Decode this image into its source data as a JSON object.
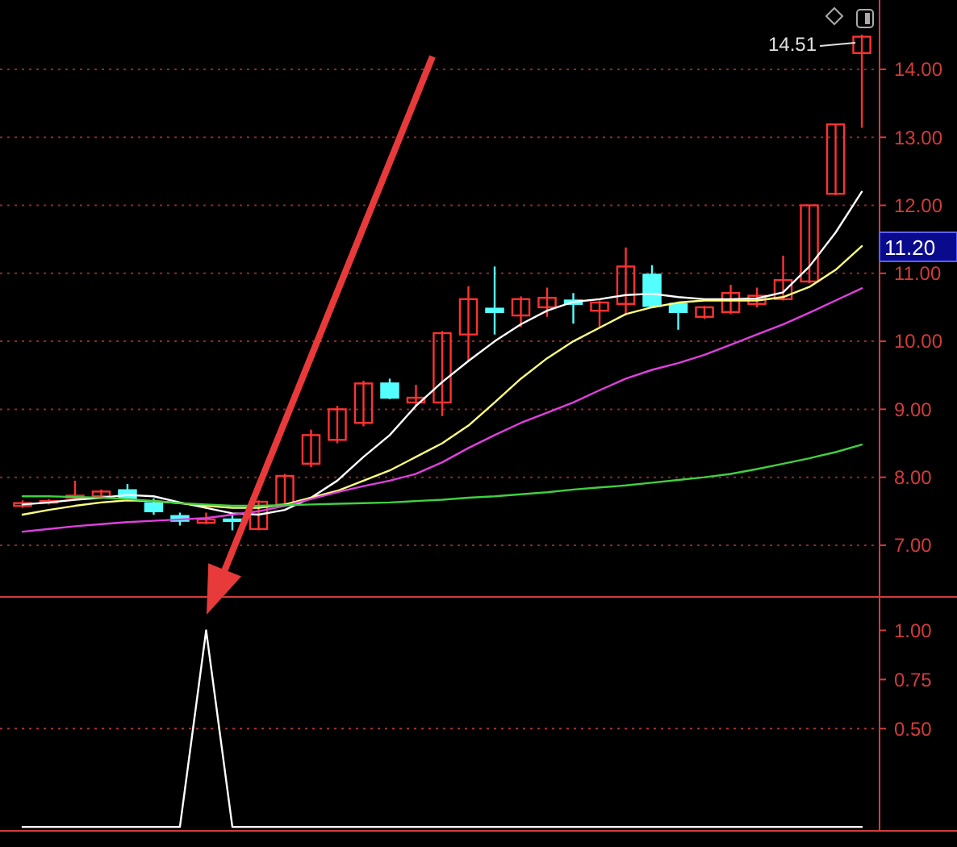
{
  "chart_data": [
    {
      "type": "candlestick",
      "categories": [
        null,
        null,
        null,
        null,
        null,
        null,
        null,
        null,
        null,
        null,
        null,
        null,
        null,
        null,
        null,
        null,
        null,
        null,
        null,
        null,
        null,
        null,
        null,
        null,
        null,
        null,
        null,
        null,
        null,
        null,
        null,
        null,
        null
      ],
      "ohlc": [
        [
          7.58,
          7.66,
          7.55,
          7.62
        ],
        [
          7.64,
          7.68,
          7.6,
          7.65
        ],
        [
          7.7,
          7.95,
          7.68,
          7.73
        ],
        [
          7.72,
          7.82,
          7.7,
          7.79
        ],
        [
          7.81,
          7.9,
          7.67,
          7.69
        ],
        [
          7.62,
          7.69,
          7.45,
          7.5
        ],
        [
          7.43,
          7.48,
          7.29,
          7.36
        ],
        [
          7.33,
          7.48,
          7.31,
          7.38
        ],
        [
          7.38,
          7.45,
          7.22,
          7.37
        ],
        [
          7.24,
          7.66,
          7.22,
          7.64
        ],
        [
          7.6,
          8.05,
          7.58,
          8.02
        ],
        [
          8.2,
          8.7,
          8.15,
          8.62
        ],
        [
          8.55,
          9.05,
          8.5,
          9.0
        ],
        [
          8.8,
          9.42,
          8.75,
          9.38
        ],
        [
          9.38,
          9.45,
          9.15,
          9.17
        ],
        [
          9.1,
          9.36,
          9.05,
          9.17
        ],
        [
          9.1,
          10.15,
          8.9,
          10.12
        ],
        [
          10.1,
          10.81,
          9.71,
          10.62
        ],
        [
          10.48,
          11.1,
          10.1,
          10.43
        ],
        [
          10.38,
          10.66,
          10.21,
          10.62
        ],
        [
          10.5,
          10.79,
          10.36,
          10.64
        ],
        [
          10.6,
          10.71,
          10.26,
          10.55
        ],
        [
          10.45,
          10.6,
          10.19,
          10.57
        ],
        [
          10.55,
          11.38,
          10.38,
          11.1
        ],
        [
          10.98,
          11.12,
          10.5,
          10.52
        ],
        [
          10.55,
          10.58,
          10.17,
          10.43
        ],
        [
          10.36,
          10.52,
          10.33,
          10.5
        ],
        [
          10.43,
          10.83,
          10.4,
          10.71
        ],
        [
          10.55,
          10.79,
          10.5,
          10.67
        ],
        [
          10.62,
          11.26,
          10.6,
          10.9
        ],
        [
          10.88,
          12.0,
          10.85,
          12.0
        ],
        [
          12.17,
          13.19,
          12.15,
          13.19
        ],
        [
          14.24,
          14.51,
          13.14,
          14.48
        ]
      ],
      "colors": [
        "#ff3232",
        "#ff3232",
        "#ff3232",
        "#ff3232",
        "#54ffff",
        "#54ffff",
        "#54ffff",
        "#ff3232",
        "#54ffff",
        "#ff3232",
        "#ff3232",
        "#ff3232",
        "#ff3232",
        "#ff3232",
        "#54ffff",
        "#ff3232",
        "#ff3232",
        "#ff3232",
        "#54ffff",
        "#ff3232",
        "#ff3232",
        "#54ffff",
        "#ff3232",
        "#ff3232",
        "#54ffff",
        "#54ffff",
        "#ff3232",
        "#ff3232",
        "#ff3232",
        "#ff3232",
        "#ff3232",
        "#ff3232",
        "#ff3232"
      ],
      "series": [
        {
          "type": "line",
          "color": "#ffffff",
          "values": [
            7.6,
            7.63,
            7.67,
            7.7,
            7.74,
            7.72,
            7.63,
            7.55,
            7.47,
            7.45,
            7.52,
            7.7,
            7.95,
            8.3,
            8.62,
            9.05,
            9.4,
            9.71,
            10.0,
            10.25,
            10.45,
            10.58,
            10.62,
            10.68,
            10.7,
            10.65,
            10.62,
            10.62,
            10.63,
            10.72,
            11.1,
            11.6,
            12.2
          ]
        },
        {
          "type": "line",
          "color": "#ffff80",
          "values": [
            7.45,
            7.52,
            7.58,
            7.63,
            7.66,
            7.65,
            7.62,
            7.58,
            7.55,
            7.55,
            7.6,
            7.7,
            7.8,
            7.95,
            8.1,
            8.3,
            8.5,
            8.76,
            9.1,
            9.45,
            9.75,
            10.0,
            10.2,
            10.4,
            10.5,
            10.57,
            10.6,
            10.6,
            10.6,
            10.65,
            10.8,
            11.05,
            11.4
          ]
        },
        {
          "type": "line",
          "color": "#e040e0",
          "values": [
            7.2,
            7.24,
            7.28,
            7.31,
            7.34,
            7.36,
            7.38,
            7.4,
            7.45,
            7.5,
            7.58,
            7.68,
            7.78,
            7.87,
            7.95,
            8.05,
            8.22,
            8.43,
            8.62,
            8.8,
            8.95,
            9.1,
            9.28,
            9.45,
            9.58,
            9.68,
            9.8,
            9.95,
            10.1,
            10.25,
            10.42,
            10.6,
            10.78
          ]
        },
        {
          "type": "line",
          "color": "#40d040",
          "values": [
            7.72,
            7.72,
            7.71,
            7.7,
            7.68,
            7.65,
            7.62,
            7.6,
            7.58,
            7.58,
            7.59,
            7.6,
            7.61,
            7.62,
            7.63,
            7.65,
            7.67,
            7.7,
            7.72,
            7.75,
            7.78,
            7.82,
            7.85,
            7.88,
            7.92,
            7.96,
            8.0,
            8.05,
            8.12,
            8.2,
            8.28,
            8.37,
            8.48
          ]
        }
      ],
      "ylim": [
        6.24,
        15.02
      ],
      "yticks": [
        {
          "value": 7,
          "label": "7.00"
        },
        {
          "value": 8,
          "label": "8.00"
        },
        {
          "value": 9,
          "label": "9.00"
        },
        {
          "value": 10,
          "label": "10.00"
        },
        {
          "value": 11,
          "label": "11.00"
        },
        {
          "value": 12,
          "label": "12.00"
        },
        {
          "value": 13,
          "label": "13.00"
        },
        {
          "value": 14,
          "label": "14.00"
        }
      ],
      "grid": "y",
      "annotations": [
        "14.51",
        "11.20"
      ]
    },
    {
      "type": "line",
      "categories": [
        null,
        null,
        null,
        null,
        null,
        null,
        null,
        null,
        null,
        null,
        null,
        null,
        null,
        null,
        null,
        null,
        null,
        null,
        null,
        null,
        null,
        null,
        null,
        null,
        null,
        null,
        null,
        null,
        null,
        null,
        null,
        null,
        null
      ],
      "series": [
        {
          "color": "#ffffff",
          "values": [
            0,
            0,
            0,
            0,
            0,
            0,
            0,
            1,
            0,
            0,
            0,
            0,
            0,
            0,
            0,
            0,
            0,
            0,
            0,
            0,
            0,
            0,
            0,
            0,
            0,
            0,
            0,
            0,
            0,
            0,
            0,
            0,
            0
          ]
        }
      ],
      "ylim": [
        -0.02,
        1.17
      ],
      "yticks": [
        {
          "value": 0.5,
          "label": "0.50"
        },
        {
          "value": 0.75,
          "label": "0.75"
        },
        {
          "value": 1,
          "label": "1.00"
        }
      ],
      "ref_lines": [
        {
          "axis": "y",
          "value": 0.5,
          "color": "#b03030",
          "line_style": "dotted"
        }
      ]
    }
  ]
}
